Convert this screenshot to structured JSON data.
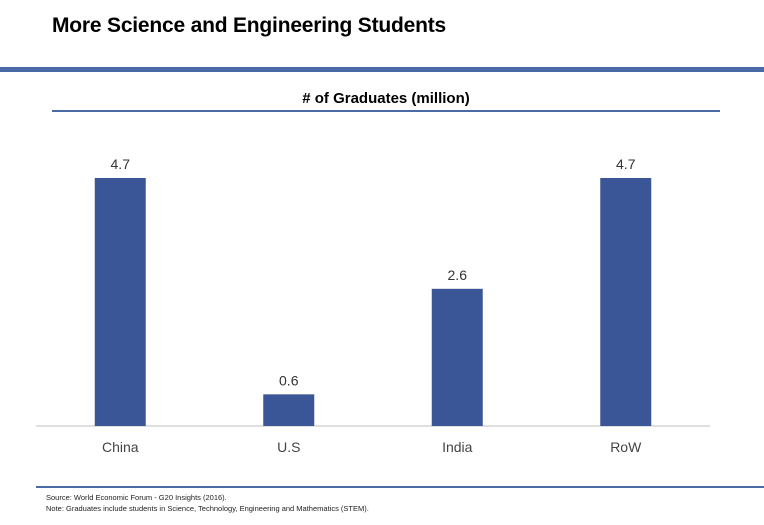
{
  "slide": {
    "title": "More Science and Engineering Students"
  },
  "colors": {
    "accent": "#4a6aa5",
    "bar": "#3b5696",
    "axis": "#bfbfbf"
  },
  "chart_data": {
    "type": "bar",
    "title": "# of Graduates (million)",
    "categories": [
      "China",
      "U.S",
      "India",
      "RoW"
    ],
    "values": [
      4.7,
      0.6,
      2.6,
      4.7
    ],
    "data_labels": [
      "4.7",
      "0.6",
      "2.6",
      "4.7"
    ],
    "xlabel": "",
    "ylabel": "",
    "ylim": [
      0,
      5.5
    ],
    "grid": false,
    "legend": "none"
  },
  "footer": {
    "source": "Source: World Economic Forum - G20 Insights (2016).",
    "note": "Note:  Graduates include students in Science, Technology, Engineering and Mathematics (STEM)."
  }
}
